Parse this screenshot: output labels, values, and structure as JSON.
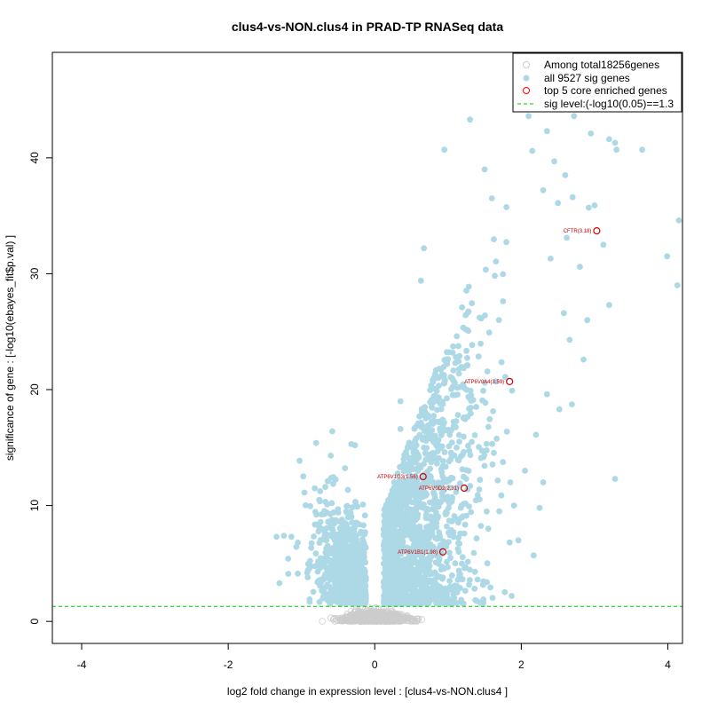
{
  "chart_data": {
    "type": "scatter",
    "title": "clus4-vs-NON.clus4 in PRAD-TP RNASeq data",
    "xlabel": "log2 fold change in expression level : [clus4-vs-NON.clus4 ]",
    "ylabel": "significance of gene : [-log10(ebayes_fit$p.val) ]",
    "xlim": [
      -4.4,
      4.2
    ],
    "ylim": [
      -1.9,
      49.1
    ],
    "xticks": [
      -4,
      -2,
      0,
      2,
      4
    ],
    "yticks": [
      0,
      10,
      20,
      30,
      40
    ],
    "sig_level": 1.3,
    "legend": {
      "position": "top-right",
      "entries": [
        {
          "label": "Among total18256genes",
          "symbol": "open-circle",
          "color": "#cccccc"
        },
        {
          "label": "all 9527 sig genes",
          "symbol": "filled-circle",
          "color": "#add8e6"
        },
        {
          "label": "top 5 core enriched genes",
          "symbol": "open-circle",
          "color": "#ff0000"
        },
        {
          "label": "sig level:(-log10(0.05)==1.3",
          "symbol": "dashed-line",
          "color": "#00cc00"
        }
      ]
    },
    "colors": {
      "nonsig": "#cccccc",
      "sig": "#add8e6",
      "core": "#cc0000",
      "sigline": "#00cc00"
    },
    "core_genes": [
      {
        "label": "CFTR(3.18)",
        "x": 3.03,
        "y": 33.7
      },
      {
        "label": "ATP6V0A4(3.59)",
        "x": 1.84,
        "y": 20.7
      },
      {
        "label": "ATP6V1G3(1.56)",
        "x": 0.66,
        "y": 12.5
      },
      {
        "label": "ATP6V0D2(2.31)",
        "x": 1.22,
        "y": 11.5
      },
      {
        "label": "ATP6V1B1(1.98)",
        "x": 0.93,
        "y": 6.0
      }
    ],
    "outliers": [
      [
        1.3,
        43.3
      ],
      [
        2.1,
        43.6
      ],
      [
        2.35,
        42.3
      ],
      [
        2.72,
        43.6
      ],
      [
        2.95,
        42.1
      ],
      [
        3.2,
        41.6
      ],
      [
        3.28,
        41.3
      ],
      [
        3.65,
        40.7
      ],
      [
        3.3,
        40.7
      ],
      [
        0.95,
        40.7
      ],
      [
        2.6,
        38.5
      ],
      [
        2.3,
        37.2
      ],
      [
        3.0,
        35.9
      ],
      [
        2.92,
        35.7
      ],
      [
        4.15,
        34.6
      ],
      [
        3.99,
        31.5
      ],
      [
        4.13,
        29.0
      ],
      [
        3.12,
        32.5
      ],
      [
        3.2,
        27.3
      ],
      [
        3.28,
        12.3
      ],
      [
        2.85,
        22.6
      ],
      [
        2.17,
        5.7
      ],
      [
        1.96,
        7.0
      ],
      [
        0.67,
        32.2
      ],
      [
        0.63,
        29.4
      ],
      [
        0.35,
        19.0
      ],
      [
        0.35,
        16.6
      ],
      [
        -0.58,
        16.4
      ],
      [
        -0.8,
        15.4
      ],
      [
        -0.32,
        15.3
      ],
      [
        -0.27,
        15.2
      ],
      [
        -0.6,
        14.3
      ],
      [
        -1.24,
        7.4
      ],
      [
        -1.34,
        7.3
      ],
      [
        -1.3,
        3.3
      ],
      [
        -1.18,
        4.1
      ],
      [
        -1.05,
        6.8
      ],
      [
        2.5,
        36.1
      ],
      [
        2.7,
        36.6
      ],
      [
        2.45,
        39.7
      ],
      [
        2.15,
        40.6
      ],
      [
        1.6,
        36.5
      ],
      [
        1.5,
        39.0
      ],
      [
        2.8,
        30.6
      ],
      [
        2.62,
        33.1
      ],
      [
        2.4,
        31.3
      ],
      [
        2.58,
        26.6
      ],
      [
        2.9,
        26.0
      ],
      [
        2.66,
        24.3
      ],
      [
        2.35,
        19.6
      ],
      [
        2.52,
        18.3
      ],
      [
        2.2,
        16.1
      ],
      [
        2.3,
        12.0
      ],
      [
        2.05,
        13.0
      ],
      [
        1.85,
        12.0
      ],
      [
        1.7,
        9.5
      ],
      [
        1.55,
        8.0
      ],
      [
        1.9,
        10.0
      ],
      [
        2.25,
        9.8
      ]
    ]
  }
}
